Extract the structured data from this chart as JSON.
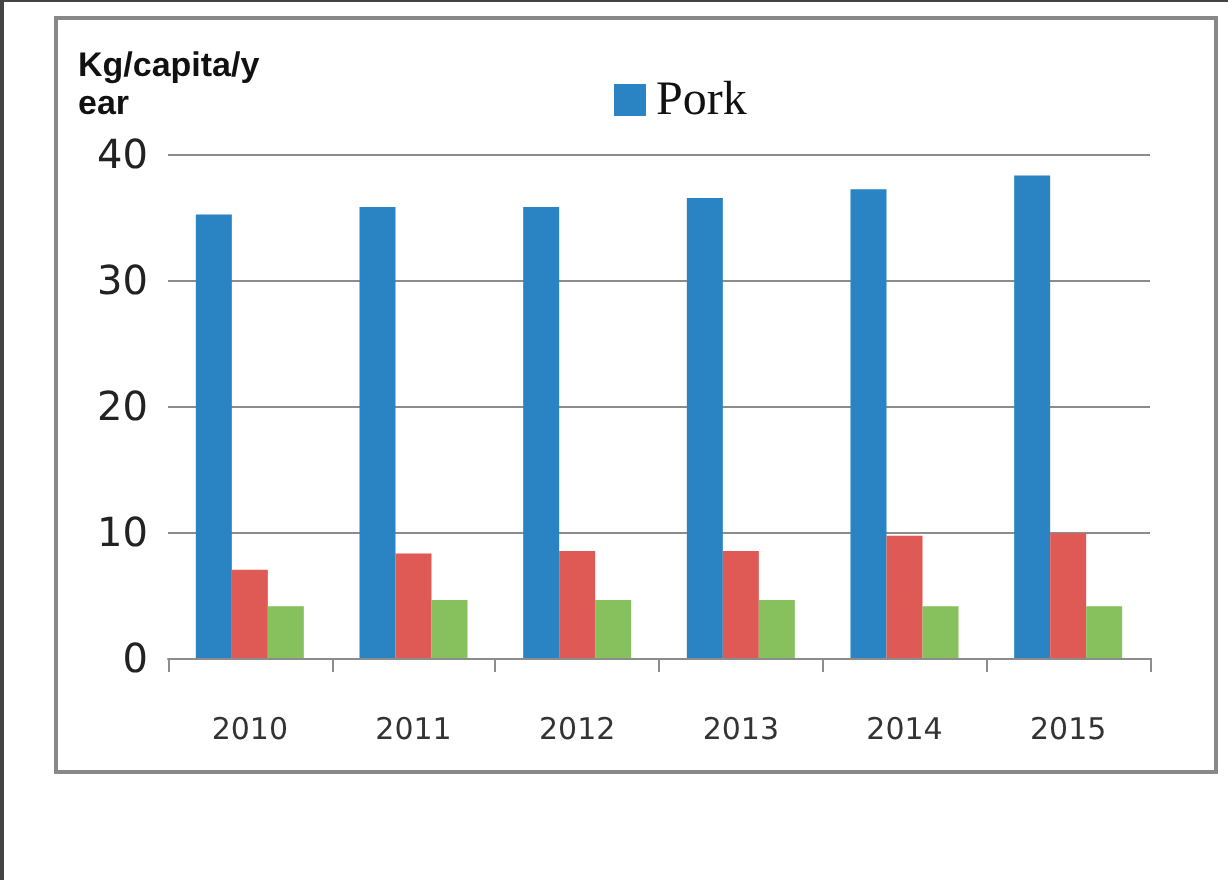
{
  "chart_data": {
    "type": "bar",
    "ylabel": "Kg/capita/year",
    "categories": [
      "2010",
      "2011",
      "2012",
      "2013",
      "2014",
      "2015"
    ],
    "series": [
      {
        "name": "Pork",
        "color": "#2a83c3",
        "values": [
          35.2,
          35.8,
          35.8,
          36.5,
          37.2,
          38.3
        ]
      },
      {
        "color": "#e05a55",
        "values": [
          7.0,
          8.3,
          8.5,
          8.5,
          9.7,
          9.9
        ]
      },
      {
        "color": "#86c15e",
        "values": [
          4.1,
          4.6,
          4.6,
          4.6,
          4.1,
          4.1
        ]
      }
    ],
    "ylim": [
      0,
      40
    ],
    "yticks": [
      0,
      10,
      20,
      30,
      40
    ],
    "grid": "y",
    "legend": "top"
  }
}
